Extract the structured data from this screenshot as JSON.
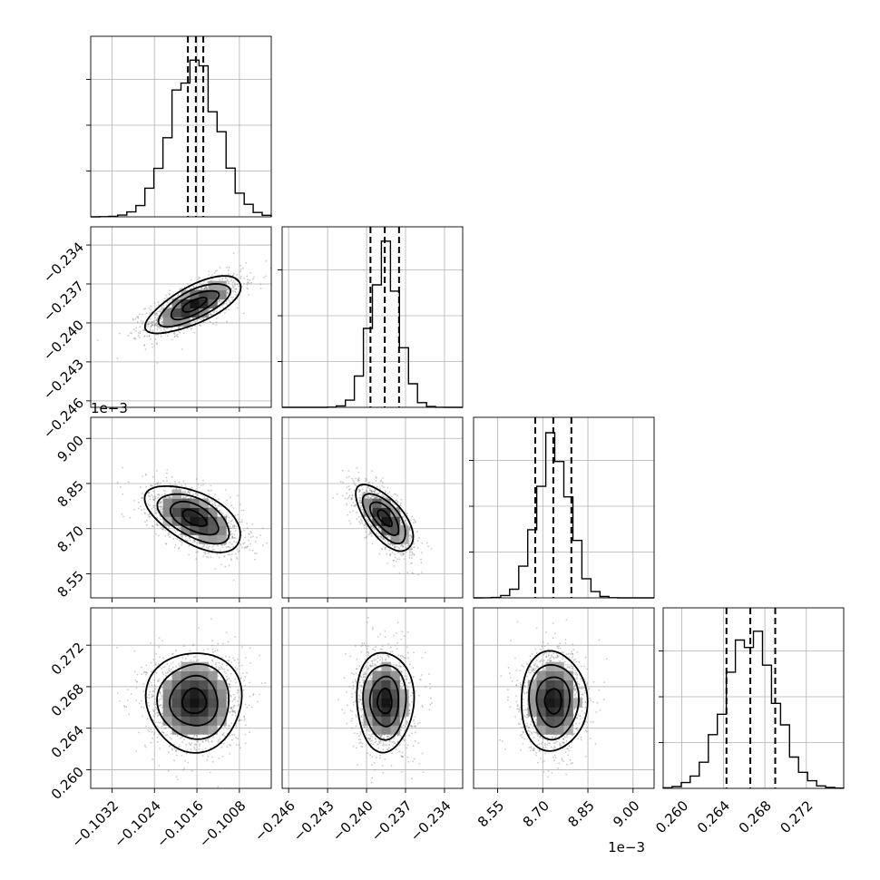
{
  "chart_data": {
    "type": "corner",
    "grid": true,
    "parameters": [
      {
        "range": [
          -0.1036,
          -0.1002
        ],
        "ticks": [
          -0.1032,
          -0.1024,
          -0.1016,
          -0.1008
        ],
        "tick_labels": [
          "−0.1032",
          "−0.1024",
          "−0.1016",
          "−0.1008"
        ],
        "scale_label": "",
        "mean": -0.10165,
        "sigma": 0.00045,
        "quantiles": [
          -0.10177,
          -0.10162,
          -0.10148
        ]
      },
      {
        "range": [
          -0.2465,
          -0.2326
        ],
        "ticks": [
          -0.246,
          -0.243,
          -0.24,
          -0.237,
          -0.234
        ],
        "tick_labels": [
          "−0.246",
          "−0.243",
          "−0.240",
          "−0.237",
          "−0.234"
        ],
        "scale_label": "",
        "mean": -0.2386,
        "sigma": 0.0011,
        "quantiles": [
          -0.2397,
          -0.2386,
          -0.2375
        ]
      },
      {
        "range": [
          8.47,
          9.07
        ],
        "ticks": [
          8.55,
          8.7,
          8.85,
          9.0
        ],
        "tick_labels": [
          "8.55",
          "8.70",
          "8.85",
          "9.00"
        ],
        "scale_label": "1e−3",
        "mean": 8.735,
        "sigma": 0.055,
        "quantiles": [
          8.675,
          8.735,
          8.795
        ]
      },
      {
        "range": [
          0.2582,
          0.2756
        ],
        "ticks": [
          0.26,
          0.264,
          0.268,
          0.272
        ],
        "tick_labels": [
          "0.260",
          "0.264",
          "0.268",
          "0.272"
        ],
        "scale_label": "",
        "mean": 0.2666,
        "sigma": 0.0024,
        "quantiles": [
          0.2643,
          0.2666,
          0.269
        ]
      }
    ],
    "correlations": [
      {
        "pair": [
          0,
          1
        ],
        "rho": 0.7
      },
      {
        "pair": [
          0,
          2
        ],
        "rho": -0.55
      },
      {
        "pair": [
          1,
          2
        ],
        "rho": -0.65
      },
      {
        "pair": [
          0,
          3
        ],
        "rho": 0.0
      },
      {
        "pair": [
          1,
          3
        ],
        "rho": 0.0
      },
      {
        "pair": [
          2,
          3
        ],
        "rho": 0.0
      }
    ],
    "contour_levels_sigma": [
      0.5,
      1.0,
      1.5,
      2.0
    ],
    "histogram_bins": 20
  }
}
